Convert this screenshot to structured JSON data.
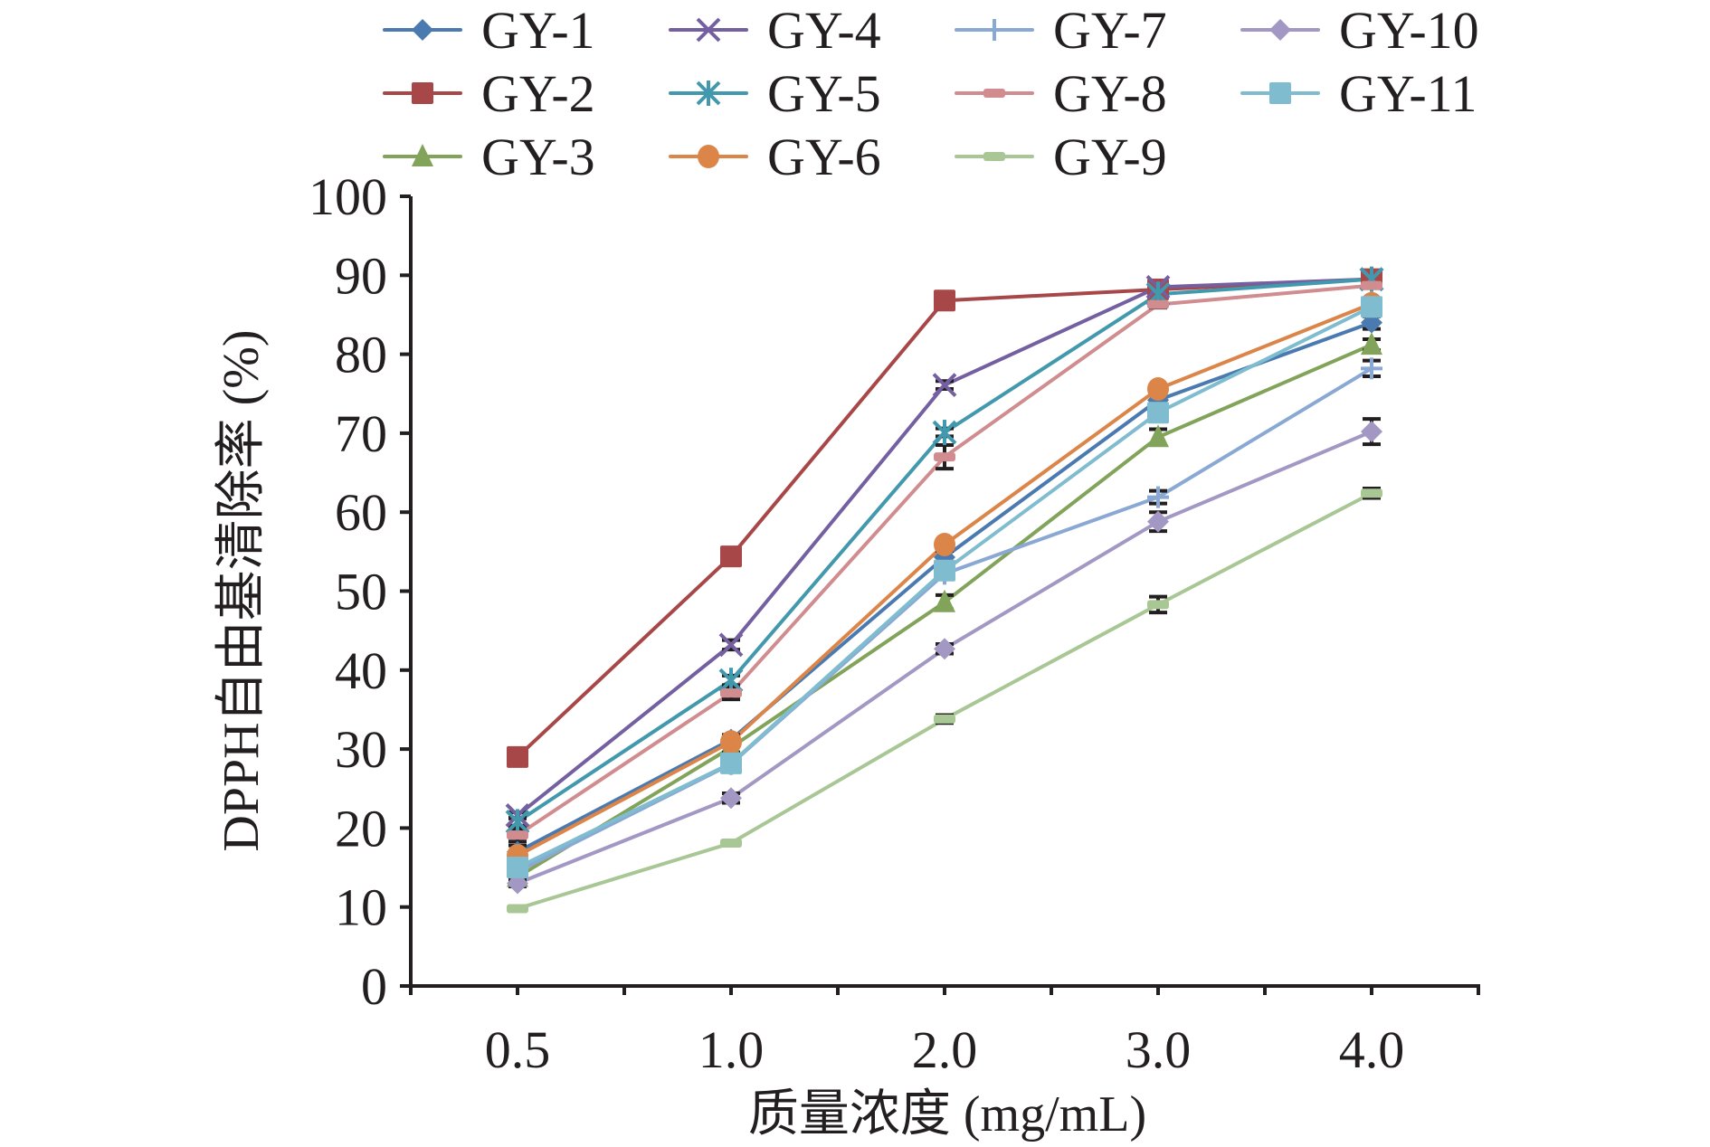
{
  "chart_data": {
    "type": "line",
    "title": "",
    "xlabel": "质量浓度 (mg/mL)",
    "ylabel": "DPPH自由基清除率 (%)",
    "categories": [
      "0.5",
      "1.0",
      "2.0",
      "3.0",
      "4.0"
    ],
    "ylim": [
      0,
      100
    ],
    "yticks": [
      "0",
      "10",
      "20",
      "30",
      "40",
      "50",
      "60",
      "70",
      "80",
      "90",
      "100"
    ],
    "grid": false,
    "legend_position": "top",
    "error_bars": true,
    "series": [
      {
        "name": "GY-1",
        "color": "#4a7ab0",
        "marker": "diamond",
        "values": [
          17.0,
          31.2,
          54.3,
          74.2,
          84.0
        ],
        "errors": [
          0.8,
          0.6,
          0.8,
          0.8,
          0.8
        ]
      },
      {
        "name": "GY-2",
        "color": "#a84747",
        "marker": "square",
        "values": [
          29.0,
          54.4,
          86.8,
          88.2,
          89.5
        ],
        "errors": [
          0.4,
          0.4,
          0.4,
          0.3,
          0.3
        ]
      },
      {
        "name": "GY-3",
        "color": "#82a35a",
        "marker": "triangle",
        "values": [
          13.8,
          30.2,
          48.6,
          69.5,
          81.2
        ],
        "errors": [
          0.5,
          0.6,
          0.9,
          1.0,
          0.7
        ]
      },
      {
        "name": "GY-4",
        "color": "#7460a0",
        "marker": "x",
        "values": [
          21.6,
          43.2,
          76.1,
          88.5,
          89.5
        ],
        "errors": [
          0.4,
          0.6,
          0.5,
          0.3,
          0.3
        ]
      },
      {
        "name": "GY-5",
        "color": "#4299ad",
        "marker": "asterisk",
        "values": [
          20.8,
          38.7,
          70.1,
          87.6,
          89.5
        ],
        "errors": [
          0.5,
          0.6,
          0.5,
          0.4,
          0.3
        ]
      },
      {
        "name": "GY-6",
        "color": "#dc8549",
        "marker": "circle",
        "values": [
          16.5,
          30.9,
          55.9,
          75.6,
          86.4
        ],
        "errors": [
          0.4,
          0.5,
          0.5,
          0.5,
          0.5
        ]
      },
      {
        "name": "GY-7",
        "color": "#8aa8d4",
        "marker": "plus",
        "values": [
          14.5,
          28.1,
          52.2,
          61.9,
          78.2
        ],
        "errors": [
          0.4,
          0.4,
          0.5,
          0.8,
          1.0
        ]
      },
      {
        "name": "GY-8",
        "color": "#d08c8e",
        "marker": "dash",
        "values": [
          19.1,
          37.1,
          67.0,
          86.3,
          88.7
        ],
        "errors": [
          0.8,
          0.8,
          1.5,
          0.4,
          0.3
        ]
      },
      {
        "name": "GY-9",
        "color": "#a8c795",
        "marker": "dash",
        "values": [
          9.8,
          18.1,
          33.8,
          48.3,
          62.4
        ],
        "errors": [
          0.3,
          0.3,
          0.5,
          1.0,
          0.6
        ]
      },
      {
        "name": "GY-10",
        "color": "#a398c3",
        "marker": "diamond",
        "values": [
          13.0,
          23.8,
          42.7,
          58.8,
          70.2
        ],
        "errors": [
          0.4,
          0.6,
          0.6,
          1.2,
          1.6
        ]
      },
      {
        "name": "GY-11",
        "color": "#80bccf",
        "marker": "square",
        "values": [
          15.0,
          28.2,
          52.6,
          72.6,
          86.0
        ],
        "errors": [
          0.4,
          0.4,
          0.5,
          0.5,
          0.5
        ]
      }
    ]
  }
}
